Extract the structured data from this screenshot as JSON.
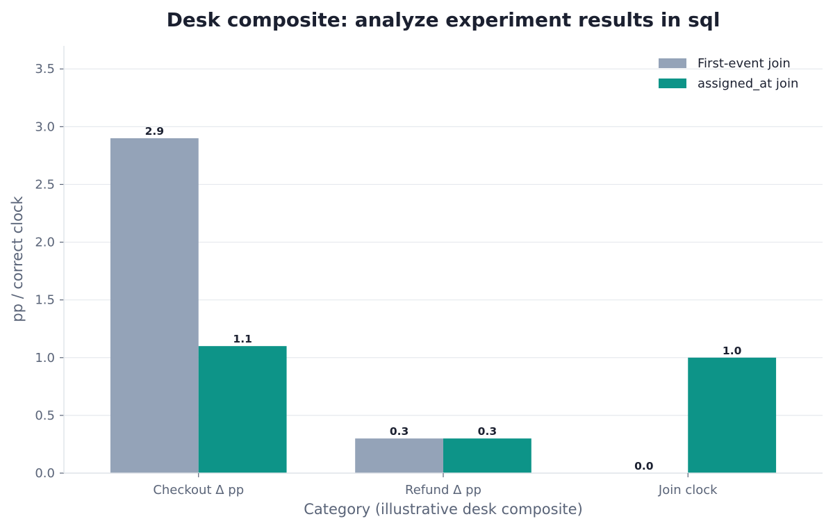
{
  "chart_data": {
    "type": "bar",
    "title": "Desk composite: analyze experiment results in sql",
    "xlabel": "Category (illustrative desk composite)",
    "ylabel": "pp / correct clock",
    "categories": [
      "Checkout Δ pp",
      "Refund Δ pp",
      "Join clock"
    ],
    "series": [
      {
        "name": "First-event join",
        "values": [
          2.9,
          0.3,
          0.0
        ],
        "labels": [
          "2.9",
          "0.3",
          "0.0"
        ],
        "color": "#94a3b8"
      },
      {
        "name": "assigned_at join",
        "values": [
          1.1,
          0.3,
          1.0
        ],
        "labels": [
          "1.1",
          "0.3",
          "1.0"
        ],
        "color": "#0d9488"
      }
    ],
    "ylim": [
      0,
      3.7
    ],
    "yticks": [
      0.0,
      0.5,
      1.0,
      1.5,
      2.0,
      2.5,
      3.0,
      3.5
    ],
    "ytick_labels": [
      "0.0",
      "0.5",
      "1.0",
      "1.5",
      "2.0",
      "2.5",
      "3.0",
      "3.5"
    ],
    "grid": true,
    "grid_axis": "y",
    "legend_position": "top-right"
  }
}
